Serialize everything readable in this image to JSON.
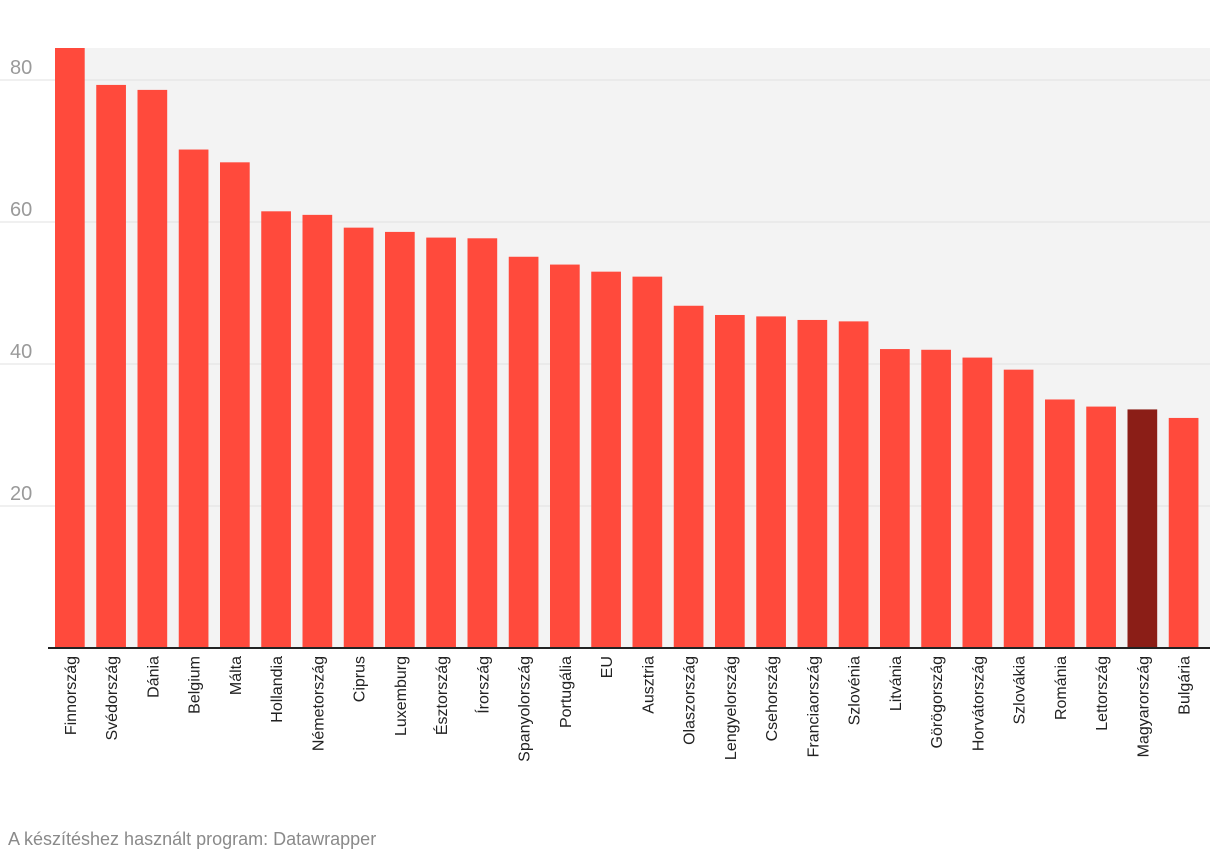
{
  "chart_data": {
    "type": "bar",
    "title": "",
    "xlabel": "",
    "ylabel": "",
    "ylim": [
      0,
      84.5
    ],
    "yticks": [
      20,
      40,
      60,
      80
    ],
    "grid": true,
    "categories": [
      "Finnország",
      "Svédország",
      "Dánia",
      "Belgium",
      "Málta",
      "Hollandia",
      "Németország",
      "Ciprus",
      "Luxemburg",
      "Észtország",
      "Írország",
      "Spanyolország",
      "Portugália",
      "EU",
      "Ausztria",
      "Olaszország",
      "Lengyelország",
      "Csehország",
      "Franciaország",
      "Szlovénia",
      "Litvánia",
      "Görögország",
      "Horvátország",
      "Szlovákia",
      "Románia",
      "Lettország",
      "Magyarország",
      "Bulgária"
    ],
    "values": [
      84.5,
      79.3,
      78.6,
      70.2,
      68.4,
      61.5,
      61.0,
      59.2,
      58.6,
      57.8,
      57.7,
      55.1,
      54.0,
      53.0,
      52.3,
      48.2,
      46.9,
      46.7,
      46.2,
      46.0,
      42.1,
      42.0,
      40.9,
      39.2,
      35.0,
      34.0,
      33.6,
      32.4
    ],
    "highlight": "Magyarország",
    "colors": {
      "bar": "#ff4a3c",
      "highlight": "#8b1e17",
      "plot_bg": "#f3f3f3",
      "grid": "#e2e2e2",
      "axis": "#222222"
    }
  },
  "footer": {
    "credit": "A készítéshez használt program: Datawrapper"
  }
}
